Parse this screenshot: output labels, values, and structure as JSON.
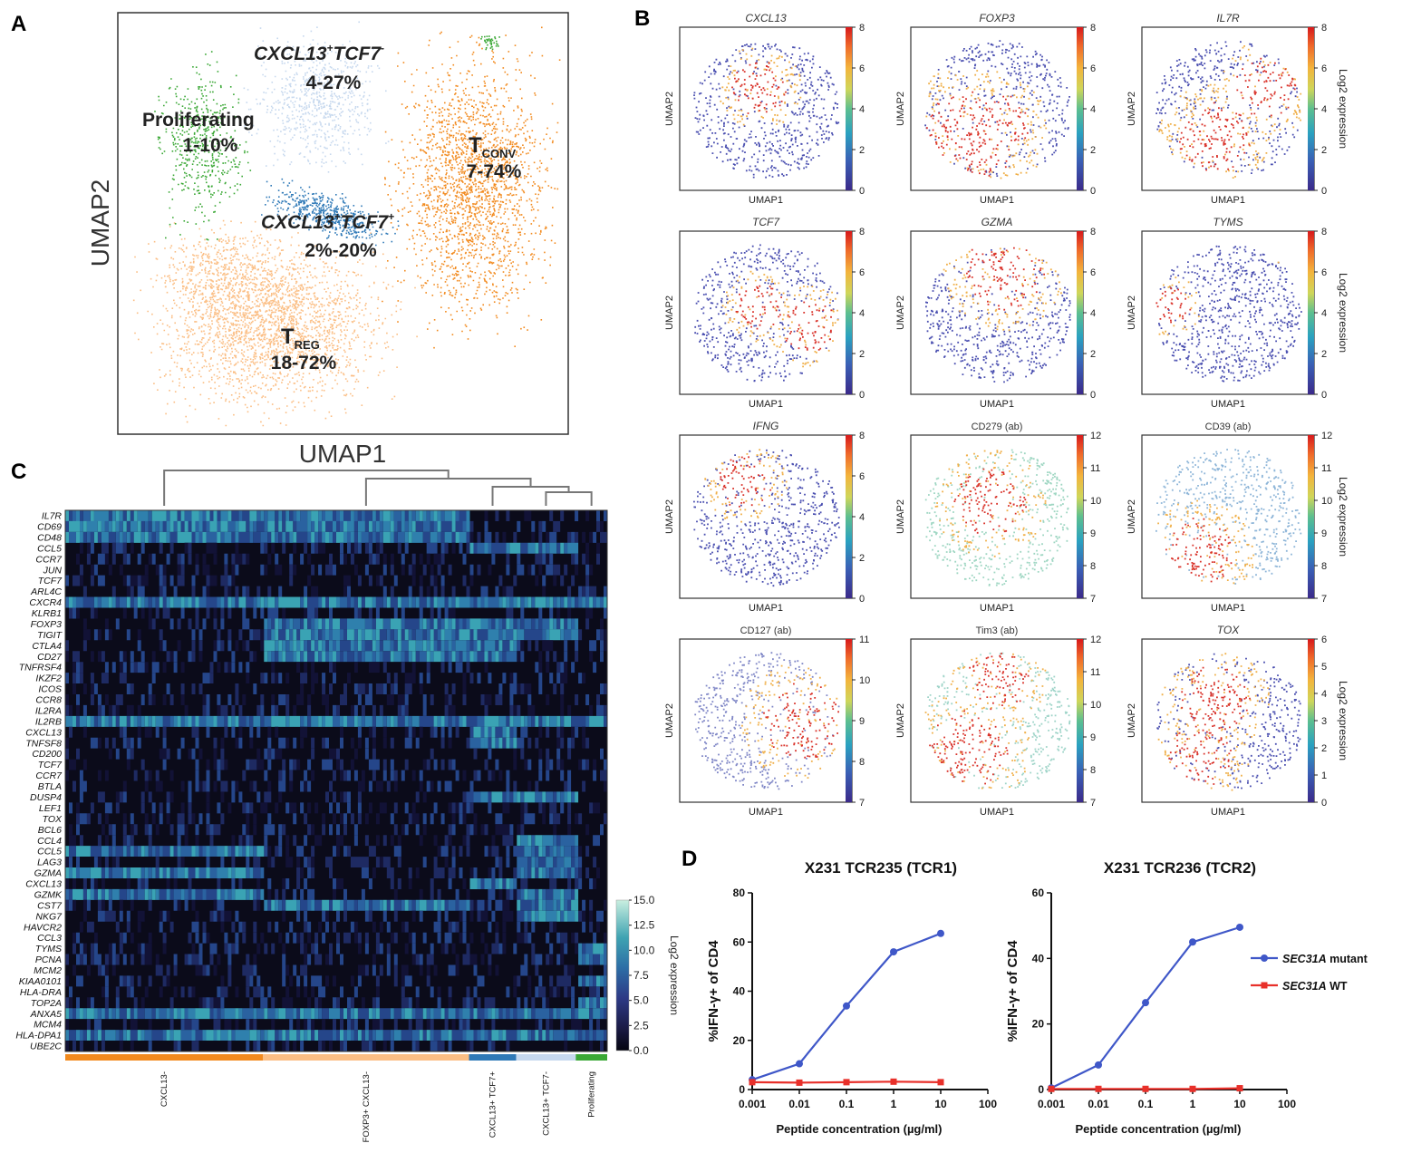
{
  "panels": {
    "A": {
      "letter": "A",
      "xlabel": "UMAP1",
      "ylabel": "UMAP2",
      "clusters": [
        {
          "name": "CXCL13+TCF7-",
          "pct": "4-27%",
          "color": "#c6d8ee"
        },
        {
          "name": "Proliferating",
          "pct": "1-10%",
          "color": "#3aa835"
        },
        {
          "name": "TCONV",
          "pct": "7-74%",
          "color": "#f28a1e"
        },
        {
          "name": "CXCL13+TCF7+",
          "pct": "2%-20%",
          "color": "#2f79b7"
        },
        {
          "name": "TREG",
          "pct": "18-72%",
          "color": "#fbbe84"
        }
      ],
      "label_text": {
        "c1_main": "CXCL13",
        "c1_sup1": "+",
        "c1_mid": "TCF7",
        "c1_sup2": "-",
        "c2_main": "CXCL13",
        "c2_sup1": "+",
        "c2_mid": "TCF7",
        "c2_sup2": "+",
        "tconv_main": "T",
        "tconv_sub": "CONV",
        "treg_main": "T",
        "treg_sub": "REG"
      }
    },
    "B": {
      "letter": "B",
      "xlabel": "UMAP1",
      "ylabel": "UMAP2",
      "colorbar_label": "Log2 expression",
      "plots": [
        {
          "title": "CXCL13",
          "italic": true,
          "ticks": [
            "0",
            "2",
            "4",
            "6",
            "8"
          ],
          "pattern": "cxcl13"
        },
        {
          "title": "FOXP3",
          "italic": true,
          "ticks": [
            "0",
            "2",
            "4",
            "6",
            "8"
          ],
          "pattern": "foxp3"
        },
        {
          "title": "IL7R",
          "italic": true,
          "ticks": [
            "0",
            "2",
            "4",
            "6",
            "8"
          ],
          "pattern": "il7r",
          "cbar_label": true
        },
        {
          "title": "TCF7",
          "italic": true,
          "ticks": [
            "0",
            "2",
            "4",
            "6",
            "8"
          ],
          "pattern": "tcf7"
        },
        {
          "title": "GZMA",
          "italic": true,
          "ticks": [
            "0",
            "2",
            "4",
            "6",
            "8"
          ],
          "pattern": "gzma"
        },
        {
          "title": "TYMS",
          "italic": true,
          "ticks": [
            "0",
            "2",
            "4",
            "6",
            "8"
          ],
          "pattern": "tyms",
          "cbar_label": true
        },
        {
          "title": "IFNG",
          "italic": true,
          "ticks": [
            "0",
            "2",
            "4",
            "6",
            "8"
          ],
          "pattern": "ifng"
        },
        {
          "title": "CD279 (ab)",
          "italic": false,
          "ticks": [
            "7",
            "8",
            "9",
            "10",
            "11",
            "12"
          ],
          "pattern": "cd279"
        },
        {
          "title": "CD39 (ab)",
          "italic": false,
          "ticks": [
            "7",
            "8",
            "9",
            "10",
            "11",
            "12"
          ],
          "pattern": "cd39",
          "cbar_label": true
        },
        {
          "title": "CD127 (ab)",
          "italic": false,
          "ticks": [
            "7",
            "8",
            "9",
            "10",
            "11"
          ],
          "pattern": "cd127"
        },
        {
          "title": "Tim3 (ab)",
          "italic": false,
          "ticks": [
            "7",
            "8",
            "9",
            "10",
            "11",
            "12"
          ],
          "pattern": "tim3"
        },
        {
          "title": "TOX",
          "italic": true,
          "ticks": [
            "0",
            "1",
            "2",
            "3",
            "4",
            "5",
            "6"
          ],
          "pattern": "tox",
          "cbar_label": true
        }
      ]
    },
    "C": {
      "letter": "C",
      "genes": [
        "IL7R",
        "CD69",
        "CD48",
        "CCL5",
        "CCR7",
        "JUN",
        "TCF7",
        "ARL4C",
        "CXCR4",
        "KLRB1",
        "FOXP3",
        "TIGIT",
        "CTLA4",
        "CD27",
        "TNFRSF4",
        "IKZF2",
        "ICOS",
        "CCR8",
        "IL2RA",
        "IL2RB",
        "CXCL13",
        "TNFSF8",
        "CD200",
        "TCF7",
        "CCR7",
        "BTLA",
        "DUSP4",
        "LEF1",
        "TOX",
        "BCL6",
        "CCL4",
        "CCL5",
        "LAG3",
        "GZMA",
        "CXCL13",
        "GZMK",
        "CST7",
        "NKG7",
        "HAVCR2",
        "CCL3",
        "TYMS",
        "PCNA",
        "MCM2",
        "KIAA0101",
        "HLA-DRA",
        "TOP2A",
        "ANXA5",
        "MCM4",
        "HLA-DPA1",
        "UBE2C"
      ],
      "groups": [
        {
          "label": "CXCL13-",
          "color": "#f28a1e",
          "frac": 0.365
        },
        {
          "label": "FOXP3+ CXCL13-",
          "color": "#fbbe84",
          "frac": 0.38
        },
        {
          "label": "CXCL13+ TCF7+",
          "color": "#2f79b7",
          "frac": 0.087
        },
        {
          "label": "CXCL13+ TCF7-",
          "color": "#c6d8ee",
          "frac": 0.11
        },
        {
          "label": "Proliferating",
          "color": "#3aa835",
          "frac": 0.058
        }
      ],
      "colorbar": {
        "ticks": [
          "15.0",
          "12.5",
          "10.0",
          "7.5",
          "5.0",
          "2.5",
          "0.0"
        ],
        "label": "Log2 expression",
        "max": 15.0
      }
    },
    "D": {
      "letter": "D"
    }
  },
  "chart_data": [
    {
      "type": "line",
      "title": "X231 TCR235 (TCR1)",
      "xlabel": "Peptide concentration (µg/ml)",
      "ylabel": "%IFN-γ+ of CD4",
      "xscale": "log",
      "xticks": [
        "0.001",
        "0.01",
        "0.1",
        "1",
        "10",
        "100"
      ],
      "yticks": [
        "0",
        "20",
        "40",
        "60",
        "80"
      ],
      "ylim": [
        0,
        80
      ],
      "x": [
        0.001,
        0.01,
        0.1,
        1,
        10
      ],
      "series": [
        {
          "name": "SEC31A mutant",
          "color": "#3f57c8",
          "marker": "circle",
          "values": [
            4,
            10.5,
            34,
            56,
            63.5
          ]
        },
        {
          "name": "SEC31A WT",
          "color": "#e8302a",
          "marker": "square",
          "values": [
            3,
            2.8,
            3,
            3.2,
            3
          ]
        }
      ]
    },
    {
      "type": "line",
      "title": "X231 TCR236 (TCR2)",
      "xlabel": "Peptide concentration (µg/ml)",
      "ylabel": "%IFN-γ+ of CD4",
      "xscale": "log",
      "xticks": [
        "0.001",
        "0.01",
        "0.1",
        "1",
        "10",
        "100"
      ],
      "yticks": [
        "0",
        "20",
        "40",
        "60"
      ],
      "ylim": [
        0,
        60
      ],
      "legend": "right",
      "x": [
        0.001,
        0.01,
        0.1,
        1,
        10
      ],
      "series": [
        {
          "name": "SEC31A mutant",
          "color": "#3f57c8",
          "marker": "circle",
          "values": [
            0.5,
            7.5,
            26.5,
            45,
            49.5
          ]
        },
        {
          "name": "SEC31A WT",
          "color": "#e8302a",
          "marker": "square",
          "values": [
            0.2,
            0.2,
            0.2,
            0.2,
            0.4
          ]
        }
      ],
      "legend_labels": [
        {
          "italic": "SEC31A",
          "rest": " mutant"
        },
        {
          "italic": "SEC31A",
          "rest": " WT"
        }
      ]
    }
  ]
}
